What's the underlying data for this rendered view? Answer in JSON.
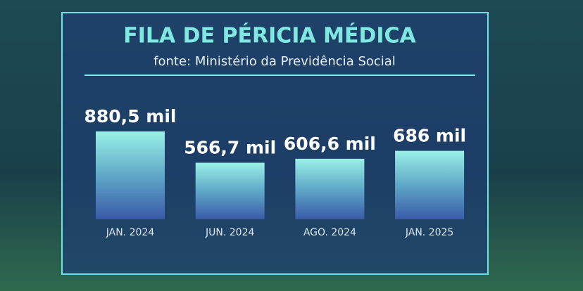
{
  "chart_data": {
    "type": "bar",
    "title": "FILA DE PÉRICIA MÉDICA",
    "subtitle": "fonte: Ministério da Previdência Social",
    "categories": [
      "JAN. 2024",
      "JUN. 2024",
      "AGO. 2024",
      "JAN. 2025"
    ],
    "values": [
      880.5,
      566.7,
      606.6,
      686
    ],
    "value_labels": [
      "880,5 mil",
      "566,7 mil",
      "606,6 mil",
      "686 mil"
    ],
    "color": "#5fbcd6"
  }
}
